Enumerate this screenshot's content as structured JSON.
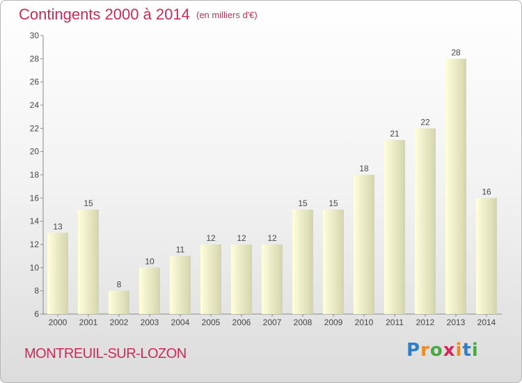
{
  "title": "Contingents 2000 à 2014",
  "subtitle": "(en milliers d'€)",
  "commune": "MONTREUIL-SUR-LOZON",
  "logo": {
    "text": "Proxiti",
    "letters": [
      "P",
      "r",
      "o",
      "x",
      "i",
      "t",
      "i"
    ],
    "colors": [
      "#2f7fc8",
      "#f08a1c",
      "#49a943",
      "#d4275a",
      "#f08a1c",
      "#2f7fc8",
      "#49a943"
    ]
  },
  "colors": {
    "accent": "#cc2a56",
    "bar_light": "#ffffde",
    "bar_dark": "#d4d4ac"
  },
  "chart_data": {
    "type": "bar",
    "categories": [
      "2000",
      "2001",
      "2002",
      "2003",
      "2004",
      "2005",
      "2006",
      "2007",
      "2008",
      "2009",
      "2010",
      "2011",
      "2012",
      "2013",
      "2014"
    ],
    "values": [
      13,
      15,
      8,
      10,
      11,
      12,
      12,
      12,
      15,
      15,
      18,
      21,
      22,
      28,
      16
    ],
    "ylim": [
      6,
      30
    ],
    "yticks": [
      6,
      8,
      10,
      12,
      14,
      16,
      18,
      20,
      22,
      24,
      26,
      28,
      30
    ],
    "grid": false,
    "legend": "none"
  }
}
